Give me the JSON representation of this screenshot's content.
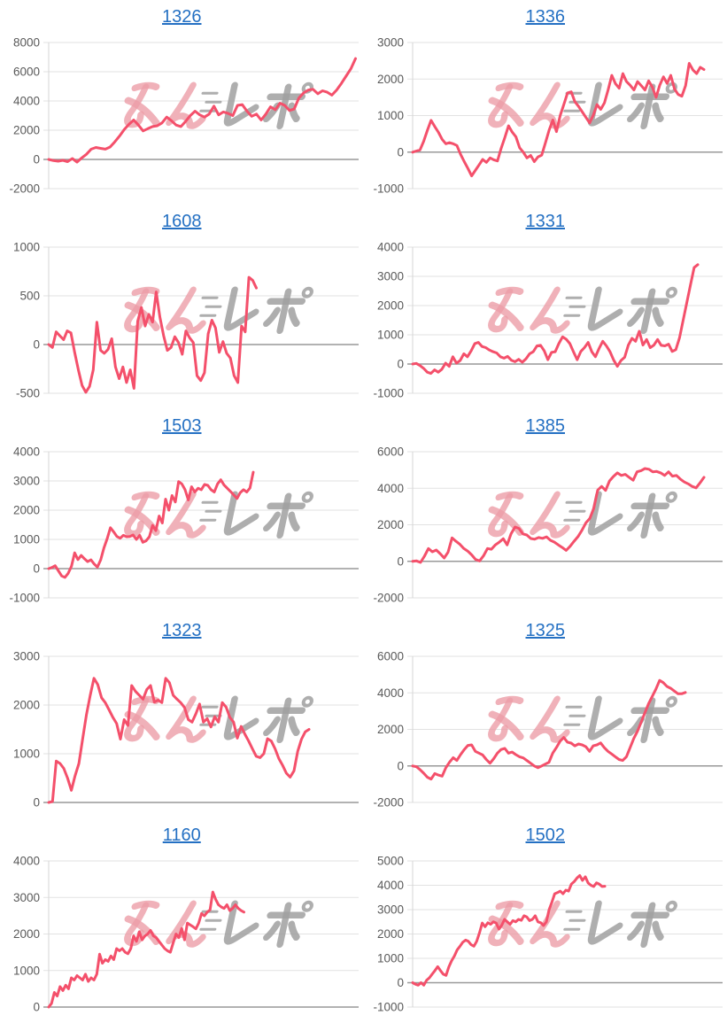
{
  "page": {
    "background": "#ffffff"
  },
  "watermark": {
    "pink_text": "みん",
    "gray_text": "レポ",
    "pink_color": "rgba(236,158,167,0.8)",
    "gray_color": "rgba(160,160,160,0.85)"
  },
  "chart_style": {
    "line_color": "#F4506B",
    "grid_color": "#E2E2E2",
    "zero_line_color": "#999999",
    "axis_color": "#D6D6D6",
    "tick_label_color": "#5A5A5A",
    "title_color": "#2470C3",
    "legend": "none",
    "grid": "horizontal-only"
  },
  "chart_data": [
    {
      "type": "line",
      "title": "1326",
      "ylim": [
        -2000,
        8000
      ],
      "yticks": [
        8000,
        6000,
        4000,
        2000,
        0,
        -2000
      ],
      "span": 0.99,
      "values": [
        0,
        -80,
        -120,
        -60,
        -150,
        60,
        -180,
        100,
        350,
        700,
        820,
        760,
        700,
        850,
        1200,
        1600,
        2050,
        2400,
        2700,
        2350,
        1950,
        2100,
        2250,
        2300,
        2500,
        2900,
        2650,
        2350,
        2250,
        2600,
        3000,
        3300,
        3050,
        2900,
        3100,
        3650,
        3050,
        3250,
        3150,
        3000,
        3700,
        3750,
        3300,
        2950,
        3100,
        2700,
        3100,
        3600,
        3400,
        3850,
        3700,
        3350,
        3450,
        4200,
        4550,
        4750,
        4800,
        4500,
        4700,
        4600,
        4400,
        4750,
        5200,
        5700,
        6200,
        6900
      ]
    },
    {
      "type": "line",
      "title": "1336",
      "ylim": [
        -1000,
        3000
      ],
      "yticks": [
        3000,
        2000,
        1000,
        0,
        -1000
      ],
      "span": 0.94,
      "values": [
        0,
        30,
        60,
        300,
        600,
        870,
        700,
        540,
        350,
        230,
        260,
        230,
        180,
        -60,
        -260,
        -450,
        -650,
        -500,
        -350,
        -200,
        -280,
        -160,
        -210,
        -240,
        100,
        400,
        720,
        550,
        420,
        120,
        0,
        -160,
        -90,
        -260,
        -130,
        -80,
        250,
        600,
        880,
        560,
        1000,
        1300,
        1620,
        1650,
        1380,
        1250,
        1100,
        950,
        800,
        1020,
        1300,
        1170,
        1350,
        1700,
        2100,
        1870,
        1750,
        2150,
        1930,
        1830,
        1700,
        1930,
        1820,
        1700,
        1950,
        1780,
        1500,
        1830,
        2060,
        1880,
        2100,
        1730,
        1580,
        1530,
        1820,
        2430,
        2250,
        2150,
        2320,
        2260
      ]
    },
    {
      "type": "line",
      "title": "1608",
      "ylim": [
        -500,
        1000
      ],
      "yticks": [
        1000,
        500,
        0,
        -500
      ],
      "span": 0.67,
      "values": [
        0,
        -30,
        130,
        90,
        50,
        140,
        120,
        -80,
        -260,
        -420,
        -490,
        -430,
        -260,
        230,
        -60,
        -90,
        -50,
        60,
        -230,
        -350,
        -230,
        -390,
        -260,
        -450,
        240,
        380,
        190,
        310,
        230,
        540,
        280,
        90,
        -60,
        -30,
        80,
        20,
        -100,
        140,
        70,
        20,
        -320,
        -370,
        -290,
        110,
        250,
        170,
        -80,
        30,
        -90,
        -140,
        -320,
        -390,
        190,
        130,
        690,
        660,
        580
      ]
    },
    {
      "type": "line",
      "title": "1331",
      "ylim": [
        -1000,
        4000
      ],
      "yticks": [
        4000,
        3000,
        2000,
        1000,
        0,
        -1000
      ],
      "span": 0.92,
      "values": [
        0,
        20,
        -50,
        -150,
        -280,
        -320,
        -200,
        -280,
        -180,
        30,
        -80,
        250,
        30,
        120,
        350,
        250,
        450,
        700,
        740,
        600,
        560,
        480,
        420,
        380,
        250,
        200,
        260,
        130,
        80,
        160,
        60,
        180,
        350,
        420,
        620,
        640,
        450,
        150,
        400,
        420,
        700,
        930,
        850,
        700,
        420,
        150,
        430,
        560,
        740,
        420,
        250,
        530,
        780,
        620,
        420,
        130,
        -80,
        120,
        230,
        650,
        880,
        780,
        1120,
        650,
        840,
        560,
        650,
        840,
        640,
        620,
        680,
        430,
        490,
        900,
        1500,
        2100,
        2700,
        3300,
        3400
      ]
    },
    {
      "type": "line",
      "title": "1503",
      "ylim": [
        -1000,
        4000
      ],
      "yticks": [
        4000,
        3000,
        2000,
        1000,
        0,
        -1000
      ],
      "span": 0.66,
      "values": [
        0,
        40,
        100,
        -80,
        -250,
        -300,
        -160,
        80,
        540,
        310,
        450,
        340,
        240,
        300,
        160,
        50,
        300,
        700,
        1020,
        1400,
        1260,
        1100,
        1040,
        1140,
        1090,
        1100,
        1150,
        1000,
        1140,
        900,
        950,
        1090,
        1480,
        1300,
        1800,
        1560,
        2380,
        2000,
        2500,
        2280,
        2980,
        2900,
        2700,
        2350,
        2800,
        2620,
        2750,
        2700,
        2880,
        2850,
        2700,
        2620,
        2900,
        3040,
        2860,
        2750,
        2640,
        2520,
        2400,
        2600,
        2700,
        2620,
        2760,
        3300
      ]
    },
    {
      "type": "line",
      "title": "1385",
      "ylim": [
        -2000,
        6000
      ],
      "yticks": [
        6000,
        4000,
        2000,
        0,
        -2000
      ],
      "span": 0.94,
      "values": [
        0,
        20,
        -60,
        280,
        700,
        520,
        620,
        420,
        180,
        500,
        1280,
        1100,
        930,
        700,
        560,
        350,
        100,
        20,
        300,
        700,
        660,
        900,
        1050,
        1240,
        900,
        1500,
        1880,
        1800,
        1500,
        1440,
        1250,
        1210,
        1300,
        1260,
        1340,
        1150,
        1050,
        900,
        760,
        600,
        820,
        1100,
        1350,
        1700,
        2100,
        2350,
        2900,
        3900,
        4100,
        3880,
        4400,
        4640,
        4840,
        4700,
        4760,
        4600,
        4440,
        4900,
        4960,
        5080,
        5040,
        4900,
        4920,
        4840,
        4700,
        4900,
        4660,
        4700,
        4500,
        4340,
        4240,
        4100,
        4020,
        4300,
        4600
      ]
    },
    {
      "type": "line",
      "title": "1323",
      "ylim": [
        0,
        3000
      ],
      "yticks": [
        3000,
        2000,
        1000,
        0
      ],
      "span": 0.84,
      "values": [
        0,
        20,
        850,
        800,
        700,
        500,
        250,
        550,
        800,
        1300,
        1800,
        2200,
        2550,
        2420,
        2150,
        2050,
        1900,
        1750,
        1620,
        1300,
        1700,
        1580,
        2400,
        2280,
        2200,
        2120,
        2320,
        2400,
        2060,
        2100,
        2050,
        2550,
        2460,
        2200,
        2120,
        2050,
        1950,
        1700,
        1650,
        1820,
        2020,
        1650,
        1720,
        1550,
        1760,
        1650,
        2050,
        1960,
        1750,
        1650,
        1320,
        1560,
        1400,
        1260,
        1100,
        950,
        920,
        1000,
        1310,
        1260,
        1100,
        900,
        760,
        600,
        520,
        650,
        1050,
        1300,
        1450,
        1500
      ]
    },
    {
      "type": "line",
      "title": "1325",
      "ylim": [
        -2000,
        6000
      ],
      "yticks": [
        6000,
        4000,
        2000,
        0,
        -2000
      ],
      "span": 0.88,
      "values": [
        0,
        -40,
        -200,
        -400,
        -620,
        -720,
        -420,
        -500,
        -560,
        -100,
        200,
        450,
        300,
        620,
        900,
        1120,
        1150,
        800,
        700,
        600,
        350,
        150,
        400,
        700,
        900,
        960,
        700,
        760,
        620,
        500,
        440,
        300,
        150,
        0,
        -100,
        0,
        100,
        200,
        700,
        1000,
        1350,
        1560,
        1300,
        1250,
        1100,
        1200,
        1150,
        1050,
        800,
        1100,
        1150,
        1260,
        1000,
        800,
        650,
        500,
        350,
        300,
        500,
        1000,
        1500,
        1900,
        2400,
        2900,
        3400,
        3800,
        4200,
        4680,
        4560,
        4350,
        4250,
        4100,
        3950,
        3950,
        4020
      ]
    },
    {
      "type": "line",
      "title": "1160",
      "ylim": [
        0,
        4000
      ],
      "yticks": [
        4000,
        3000,
        2000,
        1000,
        0
      ],
      "span": 0.63,
      "values": [
        0,
        100,
        400,
        300,
        560,
        450,
        600,
        500,
        800,
        740,
        860,
        800,
        740,
        900,
        700,
        800,
        740,
        900,
        1450,
        1200,
        1300,
        1250,
        1400,
        1300,
        1600,
        1540,
        1600,
        1500,
        1460,
        1600,
        1950,
        1800,
        2060,
        1840,
        1950,
        2000,
        2100,
        1950,
        1900,
        1800,
        1700,
        1600,
        1540,
        1500,
        1760,
        2000,
        1900,
        2150,
        1840,
        2300,
        2250,
        2200,
        2140,
        2300,
        2560,
        2500,
        2600,
        2660,
        3150,
        2950,
        2800,
        2740,
        2700,
        2800,
        2640,
        2700,
        2800,
        2700,
        2640,
        2600
      ]
    },
    {
      "type": "line",
      "title": "1502",
      "ylim": [
        -1000,
        5000
      ],
      "yticks": [
        5000,
        4000,
        3000,
        2000,
        1000,
        0,
        -1000
      ],
      "span": 0.62,
      "values": [
        0,
        -60,
        -100,
        0,
        -100,
        100,
        200,
        350,
        500,
        660,
        500,
        350,
        300,
        650,
        900,
        1100,
        1350,
        1500,
        1660,
        1750,
        1700,
        1560,
        1500,
        1700,
        2050,
        2450,
        2300,
        2460,
        2400,
        2500,
        2450,
        2200,
        2360,
        2600,
        2500,
        2400,
        2550,
        2500,
        2600,
        2560,
        2750,
        2700,
        2550,
        2600,
        2750,
        2500,
        2460,
        2350,
        2500,
        3000,
        3300,
        3650,
        3700,
        3760,
        3650,
        3800,
        3760,
        4050,
        4150,
        4300,
        4400,
        4200,
        4350,
        4100,
        4000,
        3950,
        4100,
        4050,
        3950,
        3960
      ]
    }
  ]
}
